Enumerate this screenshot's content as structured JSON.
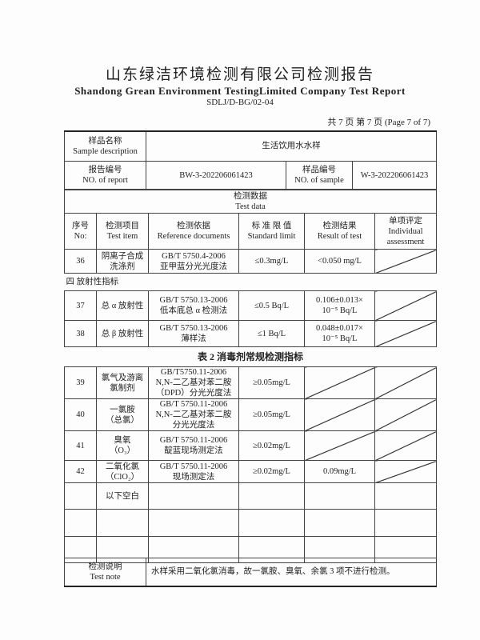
{
  "header": {
    "title_cn": "山东绿洁环境检测有限公司检测报告",
    "title_en": "Shandong Grean Environment TestingLimited Company Test Report",
    "doc_code": "SDLJ/D-BG/02-04",
    "page_info": "共 7 页  第 7 页  (Page 7 of 7)"
  },
  "info": {
    "sample_desc_label_cn": "样品名称",
    "sample_desc_label_en": "Sample description",
    "sample_desc_value": "生活饮用水水样",
    "report_no_label_cn": "报告编号",
    "report_no_label_en": "NO. of report",
    "report_no_value": "BW-3-202206061423",
    "sample_no_label_cn": "样品编号",
    "sample_no_label_en": "NO. of sample",
    "sample_no_value": "W-3-202206061423"
  },
  "test_data": {
    "label_cn": "检测数据",
    "label_en": "Test data"
  },
  "columns": [
    {
      "cn": "序号",
      "en": "No:"
    },
    {
      "cn": "检测项目",
      "en": "Test item"
    },
    {
      "cn": "检测依据",
      "en": "Reference documents"
    },
    {
      "cn": "标 准 限 值",
      "en": "Standard limit"
    },
    {
      "cn": "检测结果",
      "en": "Result of test"
    },
    {
      "cn": "单项评定",
      "en": "Individual assessment"
    }
  ],
  "rows_a": [
    {
      "no": "36",
      "item": "阴离子合成洗涤剂",
      "ref1": "GB/T 5750.4-2006",
      "ref2": "亚甲蓝分光光度法",
      "limit": "≤0.3mg/L",
      "result": "<0.050 mg/L"
    }
  ],
  "section_radio": "四  放射性指标",
  "rows_b": [
    {
      "no": "37",
      "item": "总 α 放射性",
      "ref1": "GB/T 5750.13-2006",
      "ref2": "低本底总 α 检测法",
      "limit": "≤0.5 Bq/L",
      "result1": "0.106±0.013×",
      "result2": "10⁻⁵ Bq/L"
    },
    {
      "no": "38",
      "item": "总 β 放射性",
      "ref1": "GB/T 5750.13-2006",
      "ref2": "薄样法",
      "limit": "≤1 Bq/L",
      "result1": "0.048±0.017×",
      "result2": "10⁻⁵ Bq/L"
    }
  ],
  "table2_title": "表 2 消毒剂常规检测指标",
  "rows_c": [
    {
      "no": "39",
      "item1": "氯气及游离",
      "item2": "氯制剂",
      "ref1": "GB/T5750.11-2006",
      "ref2": "N,N-二乙基对苯二胺",
      "ref3": "（DPD）分光光度法",
      "limit": "≥0.05mg/L",
      "result": ""
    },
    {
      "no": "40",
      "item1": "一氯胺",
      "item2": "（总氯）",
      "ref1": "GB/T 5750.11-2006",
      "ref2": "N,N-二乙基对苯二胺",
      "ref3": "分光光度法",
      "limit": "≥0.05mg/L",
      "result": ""
    },
    {
      "no": "41",
      "item1": "臭氧",
      "item2": "（O₃）",
      "ref1": "GB/T 5750.11-2006",
      "ref2": "靛蓝现场测定法",
      "ref3": "",
      "limit": "≥0.02mg/L",
      "result": ""
    },
    {
      "no": "42",
      "item1": "二氧化氯",
      "item2": "（ClO₂）",
      "ref1": "GB/T 5750.11-2006",
      "ref2": "现场测定法",
      "ref3": "",
      "limit": "≥0.02mg/L",
      "result": "0.09mg/L"
    }
  ],
  "blank_note": "以下空白",
  "note": {
    "label_cn": "检测说明",
    "label_en": "Test note",
    "text": "水样采用二氧化氯消毒，故一氯胺、臭氧、余氯 3 项不进行检测。"
  }
}
